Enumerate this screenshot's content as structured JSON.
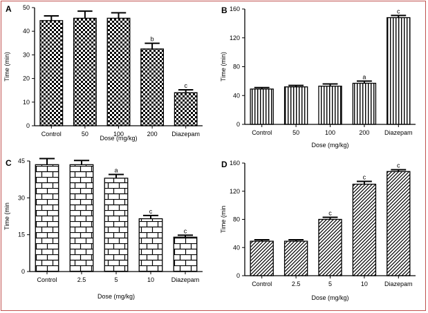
{
  "chart_data": [
    {
      "panel": "A",
      "type": "bar",
      "ylabel": "Time (min)",
      "xlabel": "Dose (mg/kg)",
      "ylim": [
        0,
        50
      ],
      "yticks": [
        0,
        10,
        20,
        30,
        40,
        50
      ],
      "categories": [
        "Control",
        "50",
        "100",
        "200",
        "Diazepam"
      ],
      "values": [
        44.5,
        45.5,
        45.5,
        32.5,
        14
      ],
      "errors": [
        2,
        3,
        2.3,
        2.4,
        1.2
      ],
      "labels": [
        "",
        "",
        "",
        "b",
        "c"
      ],
      "pattern": "checker"
    },
    {
      "panel": "B",
      "type": "bar",
      "ylabel": "Time (min)",
      "xlabel": "Dose (mg/kg)",
      "ylim": [
        0,
        160
      ],
      "yticks": [
        0,
        40,
        80,
        120,
        160
      ],
      "categories": [
        "Control",
        "50",
        "100",
        "200",
        "Diazepam"
      ],
      "values": [
        49,
        52,
        53,
        57,
        148
      ],
      "errors": [
        2,
        2,
        3,
        3,
        3
      ],
      "labels": [
        "",
        "",
        "",
        "a",
        "c"
      ],
      "pattern": "vlines"
    },
    {
      "panel": "C",
      "type": "bar",
      "ylabel": "Time (min",
      "xlabel": "Dose (mg/kg)",
      "ylim": [
        0,
        45
      ],
      "yticks": [
        0,
        15,
        30,
        45
      ],
      "categories": [
        "Control",
        "2.5",
        "5",
        "10",
        "Diazepam"
      ],
      "values": [
        43.5,
        43.5,
        38,
        21.5,
        14
      ],
      "errors": [
        2.5,
        1.7,
        1.5,
        1.3,
        0.8
      ],
      "labels": [
        "",
        "",
        "a",
        "c",
        "c"
      ],
      "pattern": "brick"
    },
    {
      "panel": "D",
      "type": "bar",
      "ylabel": "Time (min",
      "xlabel": "Dose (mg/kg)",
      "ylim": [
        0,
        160
      ],
      "yticks": [
        0,
        40,
        80,
        120,
        160
      ],
      "categories": [
        "Control",
        "2.5",
        "5",
        "10",
        "Diazepam"
      ],
      "values": [
        49,
        49,
        80,
        130,
        148
      ],
      "errors": [
        2,
        2,
        3,
        4,
        2.5
      ],
      "labels": [
        "",
        "",
        "c",
        "c",
        "c"
      ],
      "pattern": "diag"
    }
  ]
}
